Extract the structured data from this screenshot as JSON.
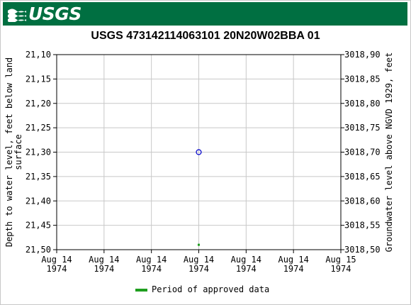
{
  "banner": {
    "logo_text": "USGS",
    "logo_icon": "usgs-wave-icon",
    "color": "#006f41"
  },
  "chart_data": {
    "type": "scatter",
    "title": "USGS 473142114063101 20N20W02BBA 01",
    "ylabel": "Depth to water level, feet below land surface",
    "ylabel_lines": [
      "Depth to water level, feet below land",
      "surface"
    ],
    "y2label": "Groundwater level above NGVD 1929, feet",
    "ylim": [
      21.1,
      21.5
    ],
    "y_inverted": true,
    "y2lim": [
      3018.9,
      3018.5
    ],
    "yticks": [
      "21,10",
      "21,15",
      "21,20",
      "21,25",
      "21,30",
      "21,35",
      "21,40",
      "21,45",
      "21,50"
    ],
    "y2ticks": [
      "3018,90",
      "3018,85",
      "3018,80",
      "3018,75",
      "3018,70",
      "3018,65",
      "3018,60",
      "3018,55",
      "3018,50"
    ],
    "xticks": [
      {
        "line1": "Aug 14",
        "line2": "1974"
      },
      {
        "line1": "Aug 14",
        "line2": "1974"
      },
      {
        "line1": "Aug 14",
        "line2": "1974"
      },
      {
        "line1": "Aug 14",
        "line2": "1974"
      },
      {
        "line1": "Aug 14",
        "line2": "1974"
      },
      {
        "line1": "Aug 14",
        "line2": "1974"
      },
      {
        "line1": "Aug 15",
        "line2": "1974"
      }
    ],
    "xlim": [
      "1974-08-14T00:00",
      "1974-08-15T00:00"
    ],
    "grid": true,
    "series": [
      {
        "type": "measurement",
        "color": "#0000cc",
        "marker": "open-circle",
        "points": [
          {
            "x": "1974-08-14T12:00",
            "y": 21.3
          }
        ]
      },
      {
        "name": "Period of approved data",
        "color": "#1f9e1f",
        "marker": "square",
        "points": [
          {
            "x": "1974-08-14T12:00",
            "y": 21.49
          }
        ]
      }
    ],
    "legend": {
      "position": "bottom-center",
      "label": "Period of approved data",
      "color": "#1f9e1f"
    }
  }
}
